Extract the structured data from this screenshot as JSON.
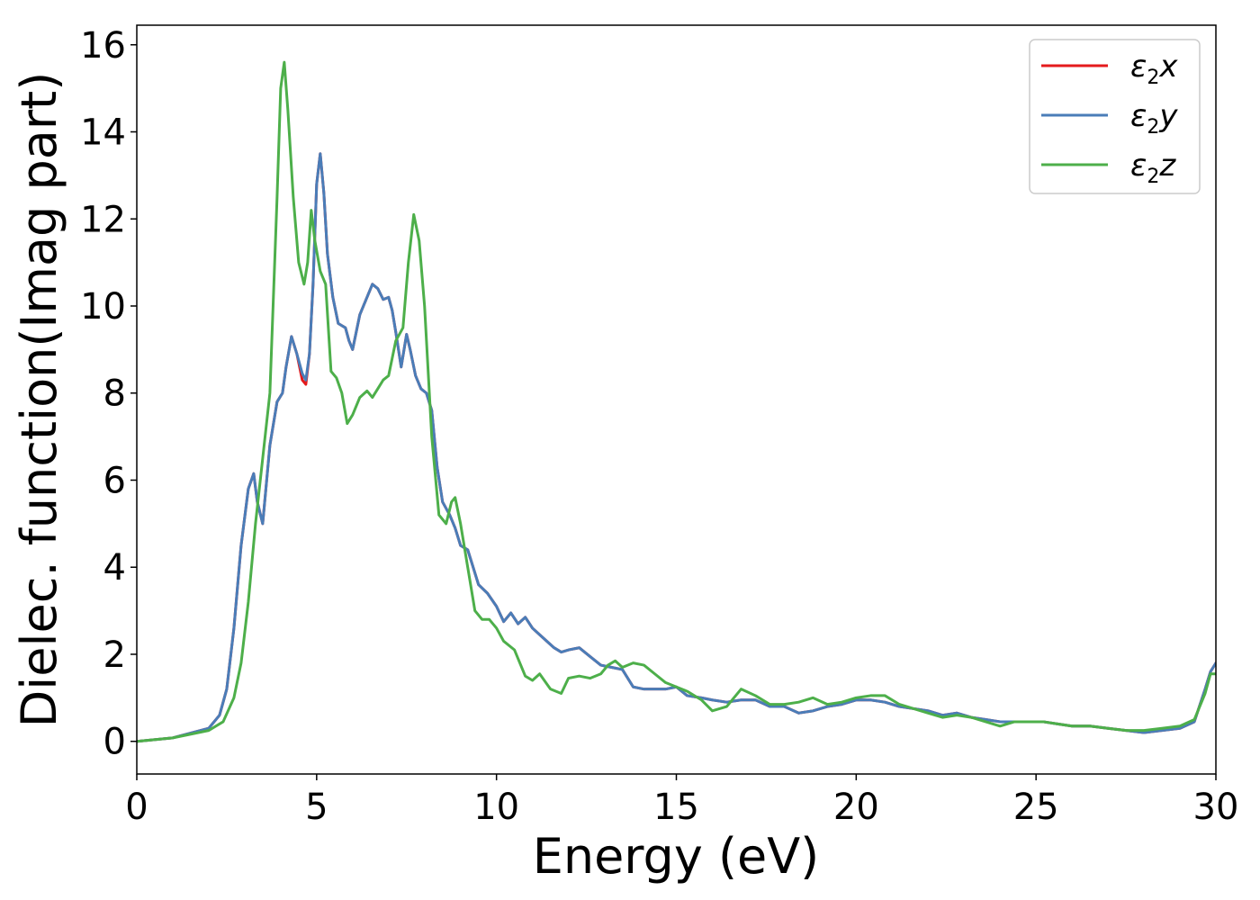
{
  "chart_data": {
    "type": "line",
    "title": "",
    "xlabel": "Energy (eV)",
    "ylabel": "Dielec. function(Imag part)",
    "xlim": [
      0,
      30
    ],
    "ylim": [
      -0.75,
      16.45
    ],
    "xticks": [
      0,
      5,
      10,
      15,
      20,
      25,
      30
    ],
    "yticks": [
      0,
      2,
      4,
      6,
      8,
      10,
      12,
      14,
      16
    ],
    "grid": false,
    "legend_position": "top-right",
    "series": [
      {
        "name": "ε2x",
        "legend": {
          "base": "ε",
          "sub": "2",
          "var": "x"
        },
        "color": "#e41a1c",
        "x": [
          0,
          1,
          2,
          2.3,
          2.5,
          2.7,
          2.9,
          3.1,
          3.25,
          3.35,
          3.5,
          3.7,
          3.9,
          4.05,
          4.15,
          4.3,
          4.45,
          4.6,
          4.7,
          4.8,
          4.9,
          5.0,
          5.1,
          5.2,
          5.3,
          5.45,
          5.6,
          5.8,
          5.9,
          6.0,
          6.2,
          6.4,
          6.55,
          6.7,
          6.85,
          7.0,
          7.1,
          7.2,
          7.35,
          7.5,
          7.6,
          7.75,
          7.9,
          8.05,
          8.2,
          8.35,
          8.5,
          8.7,
          8.85,
          9.0,
          9.2,
          9.35,
          9.5,
          9.75,
          10.0,
          10.2,
          10.4,
          10.6,
          10.8,
          11.0,
          11.2,
          11.4,
          11.6,
          11.8,
          12.0,
          12.3,
          12.6,
          12.9,
          13.2,
          13.5,
          13.8,
          14.1,
          14.4,
          14.7,
          15.0,
          15.3,
          15.7,
          16.0,
          16.4,
          16.8,
          17.2,
          17.6,
          18.0,
          18.4,
          18.8,
          19.2,
          19.6,
          20.0,
          20.4,
          20.8,
          21.2,
          21.6,
          22.0,
          22.4,
          22.8,
          23.2,
          23.6,
          24.0,
          24.4,
          24.8,
          25.2,
          25.6,
          26.0,
          26.5,
          27.0,
          27.5,
          28.0,
          28.5,
          29.0,
          29.4,
          29.7,
          29.85,
          30.0
        ],
        "y": [
          0,
          0.08,
          0.3,
          0.6,
          1.2,
          2.6,
          4.5,
          5.8,
          6.15,
          5.5,
          5.0,
          6.8,
          7.8,
          8.0,
          8.6,
          9.3,
          8.9,
          8.3,
          8.2,
          8.9,
          10.5,
          12.8,
          13.5,
          12.6,
          11.2,
          10.2,
          9.6,
          9.5,
          9.2,
          9.0,
          9.8,
          10.2,
          10.5,
          10.4,
          10.15,
          10.2,
          9.9,
          9.4,
          8.6,
          9.35,
          9.0,
          8.4,
          8.1,
          8.0,
          7.6,
          6.3,
          5.5,
          5.2,
          4.9,
          4.5,
          4.4,
          4.0,
          3.6,
          3.4,
          3.1,
          2.75,
          2.95,
          2.7,
          2.85,
          2.6,
          2.45,
          2.3,
          2.15,
          2.05,
          2.1,
          2.15,
          1.95,
          1.75,
          1.7,
          1.65,
          1.25,
          1.2,
          1.2,
          1.2,
          1.25,
          1.05,
          1.0,
          0.95,
          0.9,
          0.95,
          0.95,
          0.8,
          0.8,
          0.65,
          0.7,
          0.8,
          0.85,
          0.95,
          0.95,
          0.9,
          0.8,
          0.75,
          0.7,
          0.6,
          0.65,
          0.55,
          0.5,
          0.45,
          0.45,
          0.45,
          0.45,
          0.4,
          0.35,
          0.35,
          0.3,
          0.25,
          0.2,
          0.25,
          0.3,
          0.45,
          1.2,
          1.6,
          1.8
        ]
      },
      {
        "name": "ε2y",
        "legend": {
          "base": "ε",
          "sub": "2",
          "var": "y"
        },
        "color": "#4a7db8",
        "x": [
          0,
          1,
          2,
          2.3,
          2.5,
          2.7,
          2.9,
          3.1,
          3.25,
          3.35,
          3.5,
          3.7,
          3.9,
          4.05,
          4.15,
          4.3,
          4.45,
          4.6,
          4.7,
          4.8,
          4.9,
          5.0,
          5.1,
          5.2,
          5.3,
          5.45,
          5.6,
          5.8,
          5.9,
          6.0,
          6.2,
          6.4,
          6.55,
          6.7,
          6.85,
          7.0,
          7.1,
          7.2,
          7.35,
          7.5,
          7.6,
          7.75,
          7.9,
          8.05,
          8.2,
          8.35,
          8.5,
          8.7,
          8.85,
          9.0,
          9.2,
          9.35,
          9.5,
          9.75,
          10.0,
          10.2,
          10.4,
          10.6,
          10.8,
          11.0,
          11.2,
          11.4,
          11.6,
          11.8,
          12.0,
          12.3,
          12.6,
          12.9,
          13.2,
          13.5,
          13.8,
          14.1,
          14.4,
          14.7,
          15.0,
          15.3,
          15.7,
          16.0,
          16.4,
          16.8,
          17.2,
          17.6,
          18.0,
          18.4,
          18.8,
          19.2,
          19.6,
          20.0,
          20.4,
          20.8,
          21.2,
          21.6,
          22.0,
          22.4,
          22.8,
          23.2,
          23.6,
          24.0,
          24.4,
          24.8,
          25.2,
          25.6,
          26.0,
          26.5,
          27.0,
          27.5,
          28.0,
          28.5,
          29.0,
          29.4,
          29.7,
          29.85,
          30.0
        ],
        "y": [
          0,
          0.08,
          0.3,
          0.6,
          1.2,
          2.6,
          4.5,
          5.8,
          6.15,
          5.5,
          5.0,
          6.8,
          7.8,
          8.0,
          8.6,
          9.3,
          8.9,
          8.45,
          8.3,
          8.9,
          10.5,
          12.8,
          13.5,
          12.6,
          11.2,
          10.2,
          9.6,
          9.5,
          9.2,
          9.0,
          9.8,
          10.2,
          10.5,
          10.4,
          10.15,
          10.2,
          9.9,
          9.4,
          8.6,
          9.35,
          9.0,
          8.4,
          8.1,
          8.0,
          7.6,
          6.3,
          5.5,
          5.2,
          4.9,
          4.5,
          4.4,
          4.0,
          3.6,
          3.4,
          3.1,
          2.75,
          2.95,
          2.7,
          2.85,
          2.6,
          2.45,
          2.3,
          2.15,
          2.05,
          2.1,
          2.15,
          1.95,
          1.75,
          1.7,
          1.65,
          1.25,
          1.2,
          1.2,
          1.2,
          1.25,
          1.05,
          1.0,
          0.95,
          0.9,
          0.95,
          0.95,
          0.8,
          0.8,
          0.65,
          0.7,
          0.8,
          0.85,
          0.95,
          0.95,
          0.9,
          0.8,
          0.75,
          0.7,
          0.6,
          0.65,
          0.55,
          0.5,
          0.45,
          0.45,
          0.45,
          0.45,
          0.4,
          0.35,
          0.35,
          0.3,
          0.25,
          0.2,
          0.25,
          0.3,
          0.45,
          1.2,
          1.6,
          1.8
        ]
      },
      {
        "name": "ε2z",
        "legend": {
          "base": "ε",
          "sub": "2",
          "var": "z"
        },
        "color": "#4daf4a",
        "x": [
          0,
          1,
          2,
          2.4,
          2.7,
          2.9,
          3.1,
          3.3,
          3.5,
          3.7,
          3.9,
          4.0,
          4.1,
          4.2,
          4.35,
          4.5,
          4.65,
          4.75,
          4.85,
          4.95,
          5.1,
          5.25,
          5.4,
          5.55,
          5.7,
          5.85,
          6.0,
          6.2,
          6.4,
          6.55,
          6.7,
          6.85,
          7.0,
          7.2,
          7.4,
          7.55,
          7.7,
          7.85,
          8.0,
          8.2,
          8.4,
          8.6,
          8.75,
          8.85,
          9.0,
          9.2,
          9.4,
          9.6,
          9.8,
          10.0,
          10.2,
          10.5,
          10.8,
          11.0,
          11.2,
          11.5,
          11.8,
          12.0,
          12.3,
          12.6,
          12.9,
          13.1,
          13.3,
          13.5,
          13.8,
          14.1,
          14.4,
          14.7,
          15.0,
          15.3,
          15.7,
          16.0,
          16.4,
          16.8,
          17.2,
          17.6,
          18.0,
          18.4,
          18.8,
          19.2,
          19.6,
          20.0,
          20.4,
          20.8,
          21.2,
          21.6,
          22.0,
          22.4,
          22.8,
          23.2,
          23.6,
          24.0,
          24.4,
          24.8,
          25.2,
          25.6,
          26.0,
          26.5,
          27.0,
          27.5,
          28.0,
          28.5,
          29.0,
          29.4,
          29.7,
          29.85,
          30.0
        ],
        "y": [
          0,
          0.08,
          0.25,
          0.45,
          1.0,
          1.8,
          3.2,
          5.0,
          6.5,
          8.0,
          12.5,
          15.0,
          15.6,
          14.5,
          12.5,
          11.0,
          10.5,
          11.0,
          12.2,
          11.5,
          10.8,
          10.5,
          8.5,
          8.35,
          8.0,
          7.3,
          7.5,
          7.9,
          8.05,
          7.9,
          8.1,
          8.3,
          8.4,
          9.2,
          9.5,
          11.0,
          12.1,
          11.5,
          10.0,
          7.0,
          5.2,
          5.0,
          5.5,
          5.6,
          5.0,
          4.0,
          3.0,
          2.8,
          2.8,
          2.6,
          2.3,
          2.1,
          1.5,
          1.4,
          1.55,
          1.2,
          1.1,
          1.45,
          1.5,
          1.45,
          1.55,
          1.75,
          1.85,
          1.7,
          1.8,
          1.75,
          1.55,
          1.35,
          1.25,
          1.15,
          0.95,
          0.7,
          0.8,
          1.2,
          1.05,
          0.85,
          0.85,
          0.9,
          1.0,
          0.85,
          0.9,
          1.0,
          1.05,
          1.05,
          0.85,
          0.75,
          0.65,
          0.55,
          0.6,
          0.55,
          0.45,
          0.35,
          0.45,
          0.45,
          0.45,
          0.4,
          0.35,
          0.35,
          0.3,
          0.25,
          0.25,
          0.3,
          0.35,
          0.5,
          1.1,
          1.55,
          1.55
        ]
      }
    ]
  }
}
